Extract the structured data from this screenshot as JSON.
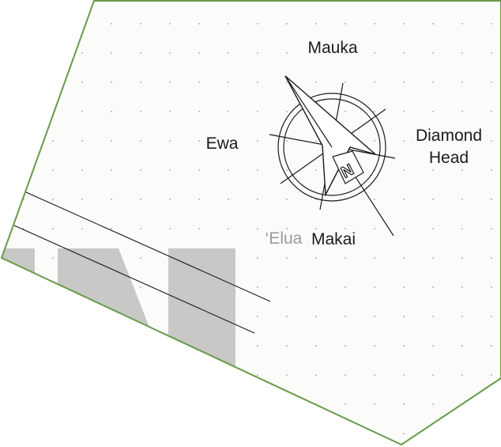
{
  "labels": {
    "north": "Mauka",
    "west": "Ewa",
    "east_line1": "Diamond",
    "east_line2": "Head",
    "south": "Makai",
    "street": "‘Elua"
  },
  "compass": {
    "letter": "N"
  },
  "colors": {
    "boundary": "#6a9a48",
    "lot_fill": "#fbfcfa",
    "building": "#c8c8c6",
    "grid_dot": "#9a9a9a",
    "line": "#1a1a1a",
    "street_label": "#9a9a9a"
  }
}
